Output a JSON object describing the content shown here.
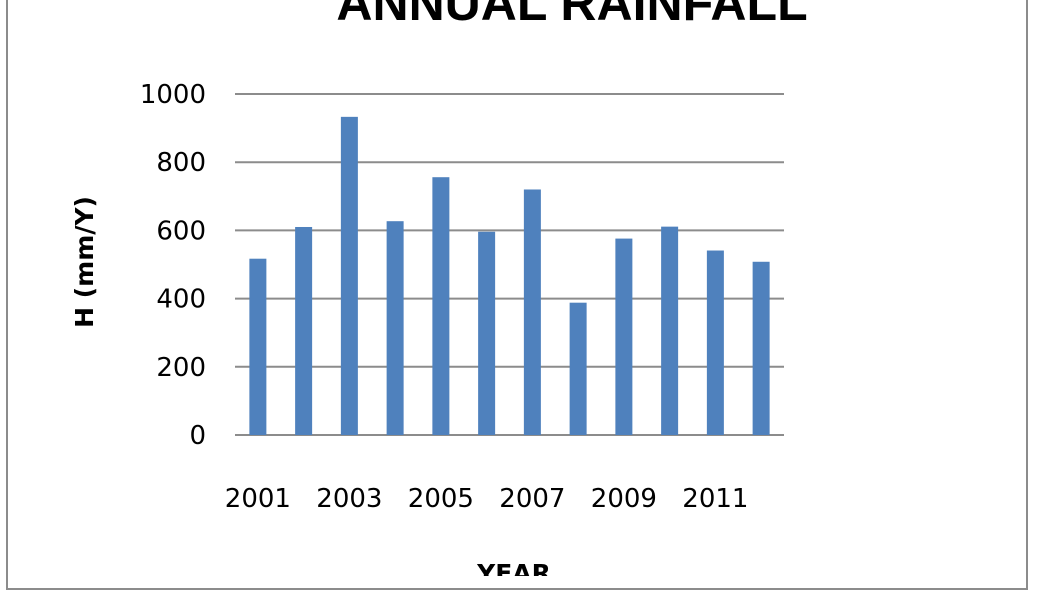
{
  "chart_data": {
    "type": "bar",
    "title": "ANNUAL RAINFALL",
    "xlabel": "YEAR",
    "ylabel": "H (mm/Y)",
    "categories": [
      "2001",
      "2002",
      "2003",
      "2004",
      "2005",
      "2006",
      "2007",
      "2008",
      "2009",
      "2010",
      "2011",
      "2012"
    ],
    "x_tick_labels": [
      "2001",
      "2003",
      "2005",
      "2007",
      "2009",
      "2011"
    ],
    "values": [
      517,
      610,
      933,
      627,
      756,
      596,
      720,
      388,
      576,
      611,
      541,
      508
    ],
    "ylim": [
      0,
      1000
    ],
    "y_ticks": [
      0,
      200,
      400,
      600,
      800,
      1000
    ],
    "grid": true,
    "legend": false,
    "bar_color": "#4f81bd"
  }
}
